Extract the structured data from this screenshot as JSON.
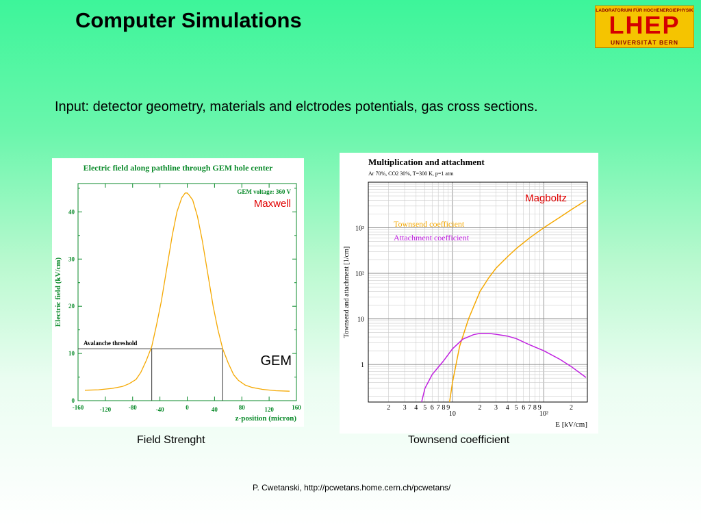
{
  "slide": {
    "title": "Computer Simulations",
    "input_text": "Input: detector geometry, materials and elctrodes potentials, gas cross sections.",
    "caption_left": "Field Strenght",
    "caption_right": "Townsend coefficient",
    "credit": "P. Cwetanski, http://pcwetans.home.cern.ch/pcwetans/"
  },
  "logo": {
    "top": "LABORATORIUM FÜR HOCHENERGIEPHYSIK",
    "main": "LHEP",
    "bottom": "UNIVERSITÄT BERN"
  },
  "chart_data": [
    {
      "type": "line",
      "title": "Electric field along pathline through GEM hole center",
      "xlabel": "z-position (micron)",
      "ylabel": "Electric field (kV/cm)",
      "xlim": [
        -160,
        160
      ],
      "ylim": [
        0,
        46
      ],
      "x_ticks": [
        "-160",
        "-120",
        "-80",
        "-40",
        "0",
        "40",
        "80",
        "120",
        "160"
      ],
      "y_ticks": [
        "0",
        "10",
        "20",
        "30",
        "40"
      ],
      "annotation_voltage": "GEM voltage: 360 V",
      "annotation_tool": "Maxwell",
      "annotation_device": "GEM",
      "threshold_label": "Avalanche threshold",
      "threshold_value": 11,
      "colors": {
        "curve": "#f5a800",
        "title": "#0a8a2a",
        "axis": "#0a8a2a",
        "tool": "#e00000"
      },
      "series": [
        {
          "x": [
            -150,
            -130,
            -110,
            -95,
            -85,
            -75,
            -68,
            -60,
            -52,
            -45,
            -38,
            -30,
            -22,
            -15,
            -8,
            -3,
            0,
            3,
            8,
            15,
            22,
            30,
            38,
            45,
            52,
            60,
            68,
            75,
            85,
            95,
            110,
            130,
            150
          ],
          "y": [
            2.2,
            2.3,
            2.6,
            3.0,
            3.6,
            4.5,
            6.0,
            8.5,
            11.5,
            16,
            21,
            28,
            35,
            40,
            43,
            44,
            44,
            43.5,
            42.5,
            39,
            34,
            27,
            20,
            15,
            11,
            8,
            5.5,
            4.3,
            3.3,
            2.8,
            2.4,
            2.1,
            2.0
          ]
        }
      ]
    },
    {
      "type": "line",
      "title": "Multiplication and attachment",
      "subtitle": "Ar 70%, CO2 30%, T=300 K, p=1 atm",
      "xlabel": "E [kV/cm]",
      "ylabel": "Townsend and attachment [1/cm]",
      "x_scale": "log",
      "y_scale": "log",
      "xlim": [
        1.2,
        300
      ],
      "ylim": [
        0.15,
        10000
      ],
      "grid": true,
      "annotation_tool": "Magboltz",
      "x_tick_labels": [
        "2",
        "3",
        "4",
        "5",
        "6",
        "7",
        "8",
        "9",
        "10",
        "2",
        "3",
        "4",
        "5",
        "6",
        "7",
        "8",
        "9",
        "10²",
        "2"
      ],
      "y_tick_labels": [
        "1",
        "10",
        "10²",
        "10³"
      ],
      "colors": {
        "townsend": "#f5a800",
        "attachment": "#c020e0",
        "tool": "#e00000"
      },
      "series": [
        {
          "name": "Townsend coefficient",
          "x": [
            9.3,
            10,
            12,
            15,
            20,
            25,
            30,
            40,
            50,
            70,
            100,
            150,
            200,
            290
          ],
          "y": [
            0.15,
            0.4,
            2.5,
            10,
            40,
            80,
            130,
            230,
            350,
            600,
            1000,
            1700,
            2500,
            4000
          ]
        },
        {
          "name": "Attachment coefficient",
          "x": [
            4.6,
            5,
            6,
            8,
            10,
            13,
            17,
            20,
            25,
            30,
            40,
            50,
            70,
            100,
            150,
            200,
            290
          ],
          "y": [
            0.15,
            0.3,
            0.6,
            1.2,
            2.2,
            3.6,
            4.5,
            4.8,
            4.8,
            4.6,
            4.2,
            3.7,
            2.7,
            2.0,
            1.3,
            0.9,
            0.52
          ]
        }
      ]
    }
  ]
}
